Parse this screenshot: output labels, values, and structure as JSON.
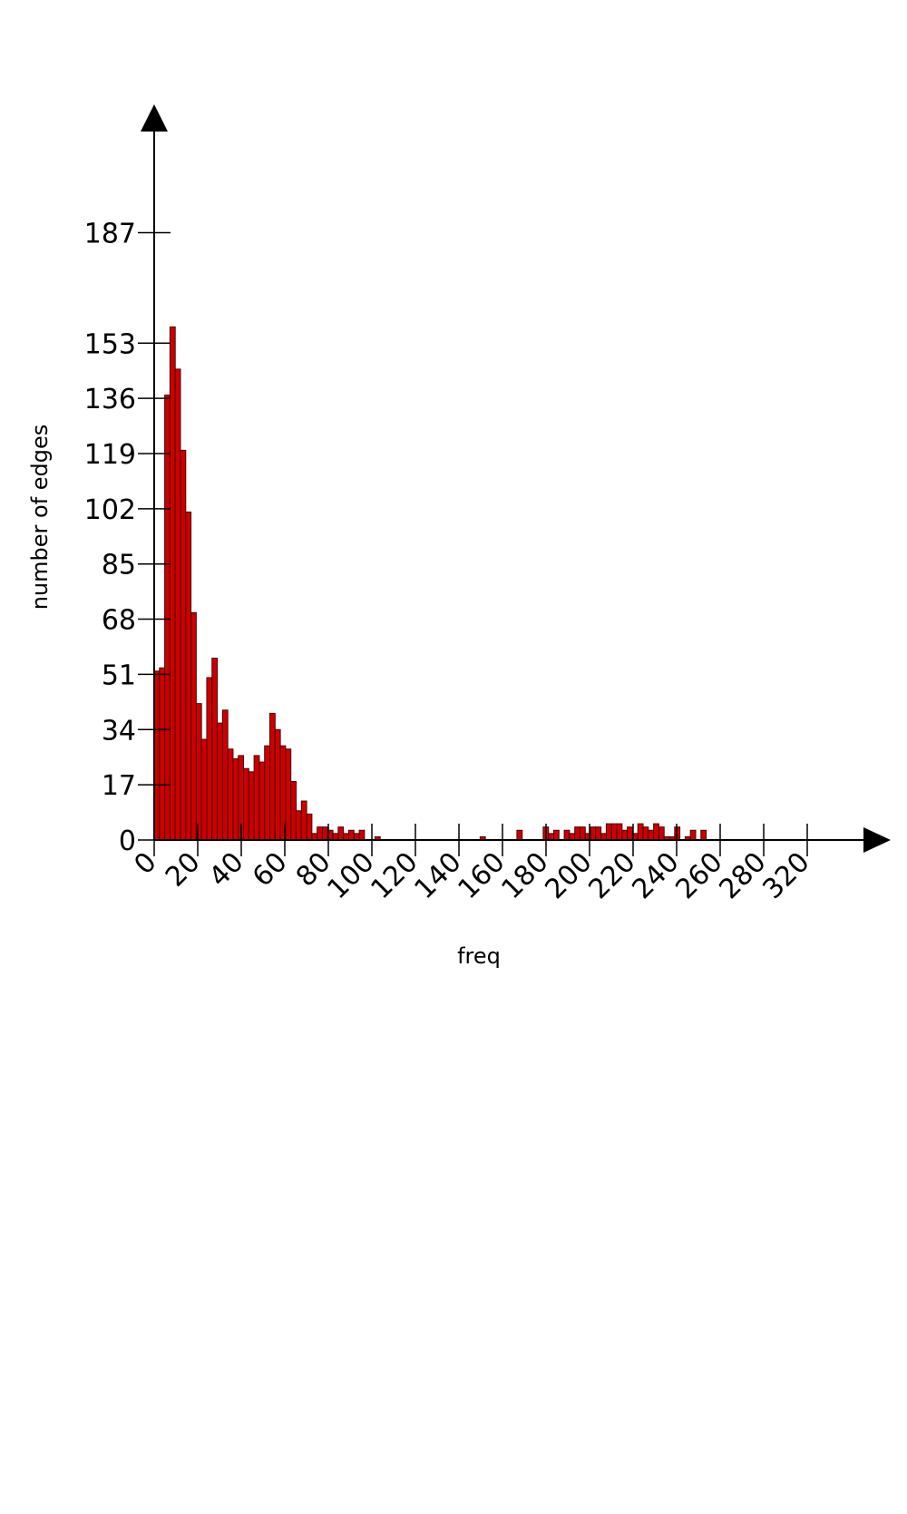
{
  "chart_data": {
    "type": "bar",
    "xlabel": "freq",
    "ylabel": "number of edges",
    "bar_width": 2.4,
    "xlim": [
      0,
      330
    ],
    "ylim": [
      0,
      200
    ],
    "x_ticks": [
      0,
      20,
      40,
      60,
      80,
      100,
      120,
      140,
      160,
      180,
      200,
      220,
      240,
      260,
      280,
      320
    ],
    "y_ticks": [
      0,
      17,
      34,
      51,
      68,
      85,
      102,
      119,
      136,
      153,
      187
    ],
    "grid": false,
    "legend": "none",
    "bar_color": "#cc0000",
    "bar_edge_color": "#4a0000",
    "bins": [
      {
        "x": 0.0,
        "value": 52
      },
      {
        "x": 2.4,
        "value": 53
      },
      {
        "x": 4.8,
        "value": 137
      },
      {
        "x": 7.2,
        "value": 158
      },
      {
        "x": 9.6,
        "value": 145
      },
      {
        "x": 12.0,
        "value": 120
      },
      {
        "x": 14.4,
        "value": 101
      },
      {
        "x": 16.8,
        "value": 70
      },
      {
        "x": 19.2,
        "value": 42
      },
      {
        "x": 21.6,
        "value": 31
      },
      {
        "x": 24.0,
        "value": 50
      },
      {
        "x": 26.4,
        "value": 56
      },
      {
        "x": 28.8,
        "value": 36
      },
      {
        "x": 31.2,
        "value": 40
      },
      {
        "x": 33.6,
        "value": 28
      },
      {
        "x": 36.0,
        "value": 25
      },
      {
        "x": 38.4,
        "value": 26
      },
      {
        "x": 40.8,
        "value": 22
      },
      {
        "x": 43.2,
        "value": 21
      },
      {
        "x": 45.6,
        "value": 26
      },
      {
        "x": 48.0,
        "value": 24
      },
      {
        "x": 50.4,
        "value": 29
      },
      {
        "x": 52.8,
        "value": 39
      },
      {
        "x": 55.2,
        "value": 34
      },
      {
        "x": 57.6,
        "value": 29
      },
      {
        "x": 60.0,
        "value": 28
      },
      {
        "x": 62.4,
        "value": 18
      },
      {
        "x": 64.8,
        "value": 9
      },
      {
        "x": 67.2,
        "value": 12
      },
      {
        "x": 69.6,
        "value": 8
      },
      {
        "x": 72.0,
        "value": 2
      },
      {
        "x": 74.4,
        "value": 4
      },
      {
        "x": 76.8,
        "value": 4
      },
      {
        "x": 79.2,
        "value": 3
      },
      {
        "x": 81.6,
        "value": 2
      },
      {
        "x": 84.0,
        "value": 4
      },
      {
        "x": 86.4,
        "value": 2
      },
      {
        "x": 88.8,
        "value": 3
      },
      {
        "x": 91.2,
        "value": 2
      },
      {
        "x": 93.6,
        "value": 3
      },
      {
        "x": 96.0,
        "value": 0
      },
      {
        "x": 98.4,
        "value": 0
      },
      {
        "x": 100.8,
        "value": 1
      },
      {
        "x": 148.8,
        "value": 1
      },
      {
        "x": 165.6,
        "value": 3
      },
      {
        "x": 177.6,
        "value": 4
      },
      {
        "x": 180.0,
        "value": 2
      },
      {
        "x": 182.4,
        "value": 3
      },
      {
        "x": 184.8,
        "value": 0
      },
      {
        "x": 187.2,
        "value": 3
      },
      {
        "x": 189.6,
        "value": 2
      },
      {
        "x": 192.0,
        "value": 4
      },
      {
        "x": 194.4,
        "value": 4
      },
      {
        "x": 196.8,
        "value": 2
      },
      {
        "x": 199.2,
        "value": 4
      },
      {
        "x": 201.6,
        "value": 4
      },
      {
        "x": 204.0,
        "value": 2
      },
      {
        "x": 206.4,
        "value": 5
      },
      {
        "x": 208.8,
        "value": 5
      },
      {
        "x": 211.2,
        "value": 5
      },
      {
        "x": 213.6,
        "value": 3
      },
      {
        "x": 216.0,
        "value": 4
      },
      {
        "x": 218.4,
        "value": 2
      },
      {
        "x": 220.8,
        "value": 5
      },
      {
        "x": 223.2,
        "value": 4
      },
      {
        "x": 225.6,
        "value": 3
      },
      {
        "x": 228.0,
        "value": 5
      },
      {
        "x": 230.4,
        "value": 4
      },
      {
        "x": 232.8,
        "value": 1
      },
      {
        "x": 235.2,
        "value": 1
      },
      {
        "x": 237.6,
        "value": 4
      },
      {
        "x": 240.0,
        "value": 0
      },
      {
        "x": 242.4,
        "value": 1
      },
      {
        "x": 244.8,
        "value": 3
      },
      {
        "x": 249.6,
        "value": 3
      }
    ]
  }
}
